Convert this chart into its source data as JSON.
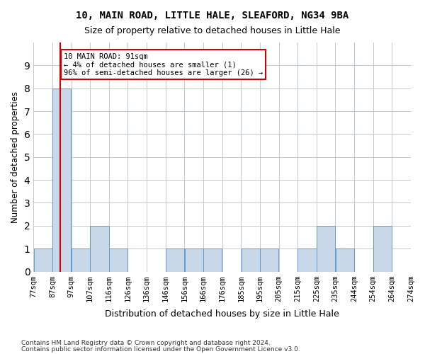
{
  "title1": "10, MAIN ROAD, LITTLE HALE, SLEAFORD, NG34 9BA",
  "title2": "Size of property relative to detached houses in Little Hale",
  "xlabel": "Distribution of detached houses by size in Little Hale",
  "ylabel": "Number of detached properties",
  "footer1": "Contains HM Land Registry data © Crown copyright and database right 2024.",
  "footer2": "Contains public sector information licensed under the Open Government Licence v3.0.",
  "annotation_line1": "10 MAIN ROAD: 91sqm",
  "annotation_line2": "← 4% of detached houses are smaller (1)",
  "annotation_line3": "96% of semi-detached houses are larger (26) →",
  "bins": [
    "77sqm",
    "87sqm",
    "97sqm",
    "107sqm",
    "116sqm",
    "126sqm",
    "136sqm",
    "146sqm",
    "156sqm",
    "166sqm",
    "176sqm",
    "185sqm",
    "195sqm",
    "205sqm",
    "215sqm",
    "225sqm",
    "235sqm",
    "244sqm",
    "254sqm",
    "264sqm",
    "274sqm"
  ],
  "values": [
    1,
    8,
    1,
    2,
    1,
    0,
    0,
    1,
    1,
    1,
    0,
    1,
    1,
    0,
    1,
    2,
    1,
    0,
    2,
    0
  ],
  "bar_color": "#c8d8e8",
  "bar_edge_color": "#5b9bd5",
  "marker_color": "#cc0000",
  "annotation_box_color": "#ffffff",
  "annotation_box_edge": "#cc0000",
  "grid_color": "#c0c8d0",
  "ylim": [
    0,
    10
  ],
  "yticks": [
    0,
    1,
    2,
    3,
    4,
    5,
    6,
    7,
    8,
    9,
    10
  ]
}
